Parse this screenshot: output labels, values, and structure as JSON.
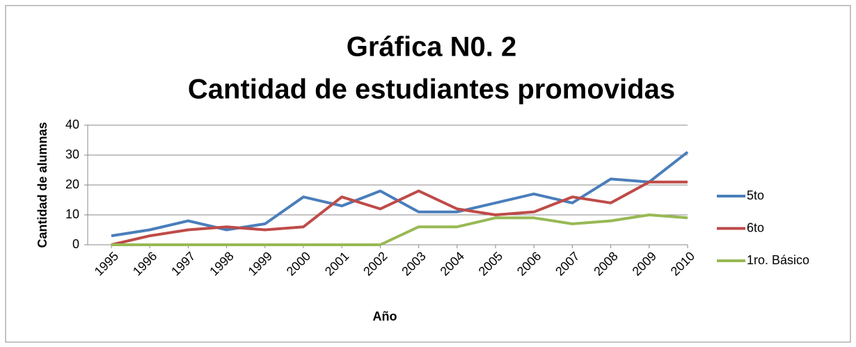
{
  "chart_data": {
    "type": "line",
    "title": "Gráfica N0. 2",
    "subtitle": "Cantidad de estudiantes promovidas",
    "x_label": "Año",
    "y_label": "Cantidad de alumnas",
    "categories": [
      "1995",
      "1996",
      "1997",
      "1998",
      "1999",
      "2000",
      "2001",
      "2002",
      "2003",
      "2004",
      "2005",
      "2006",
      "2007",
      "2008",
      "2009",
      "2010"
    ],
    "series": [
      {
        "name": "5to",
        "color": "#4a7ebb",
        "values": [
          3,
          5,
          8,
          5,
          7,
          16,
          13,
          18,
          11,
          11,
          14,
          17,
          14,
          22,
          21,
          31
        ]
      },
      {
        "name": "6to",
        "color": "#be4b48",
        "values": [
          0,
          3,
          5,
          6,
          5,
          6,
          16,
          12,
          18,
          12,
          10,
          11,
          16,
          14,
          21,
          21
        ]
      },
      {
        "name": "1ro. Básico",
        "color": "#98b954",
        "values": [
          0,
          0,
          0,
          0,
          0,
          0,
          0,
          0,
          6,
          6,
          9,
          9,
          7,
          8,
          10,
          9
        ]
      }
    ],
    "ylim": [
      0,
      40
    ],
    "yticks": [
      0,
      10,
      20,
      30,
      40
    ],
    "grid": true,
    "legend": "right"
  }
}
